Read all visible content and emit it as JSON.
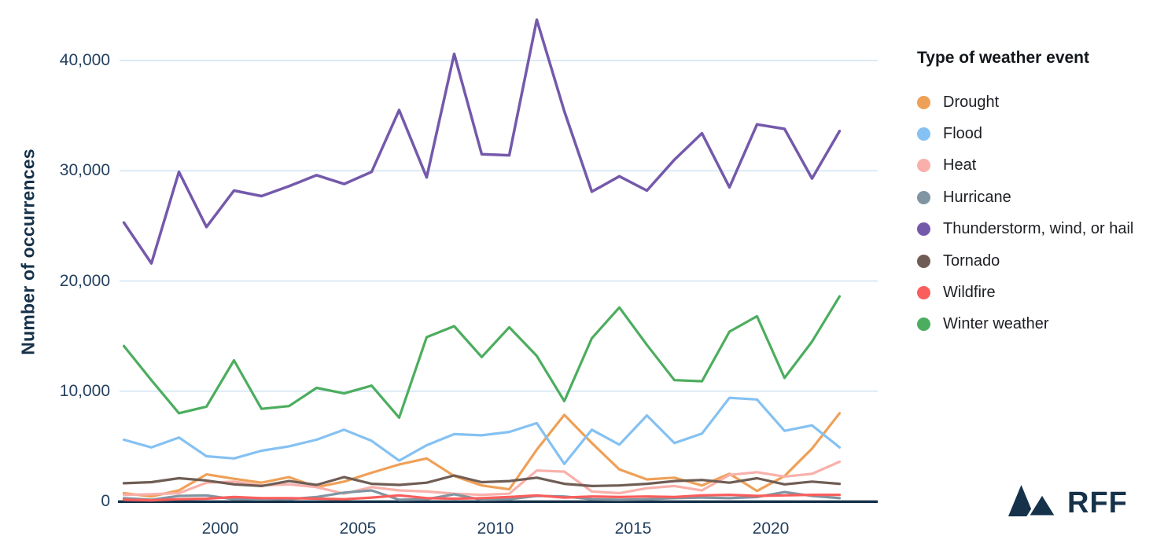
{
  "page": {
    "background": "#FFFFFF"
  },
  "chart_data": {
    "type": "line",
    "title": "",
    "ylabel": "Number of occurrences",
    "xlabel": "",
    "ylim": [
      0,
      44000
    ],
    "grid": true,
    "grid_color": "#DBEAF7",
    "axis_color": "#16324A",
    "tick_label_color": "#24405F",
    "legend_position": "right",
    "x_years": [
      1996,
      1997,
      1998,
      1999,
      2000,
      2001,
      2002,
      2003,
      2004,
      2005,
      2006,
      2007,
      2008,
      2009,
      2010,
      2011,
      2012,
      2013,
      2014,
      2015,
      2016,
      2017,
      2018,
      2019,
      2020,
      2021,
      2022
    ],
    "yticks": [
      {
        "value": 0,
        "label": "0"
      },
      {
        "value": 10000,
        "label": "10,000"
      },
      {
        "value": 20000,
        "label": "20,000"
      },
      {
        "value": 30000,
        "label": "30,000"
      },
      {
        "value": 40000,
        "label": "40,000"
      }
    ],
    "xticks": [
      {
        "value": 2000,
        "label": "2000"
      },
      {
        "value": 2005,
        "label": "2005"
      },
      {
        "value": 2010,
        "label": "2010"
      },
      {
        "value": 2015,
        "label": "2015"
      },
      {
        "value": 2020,
        "label": "2020"
      }
    ],
    "series": [
      {
        "name": "Drought",
        "color": "#EFA057",
        "values": [
          750,
          450,
          1000,
          2450,
          2050,
          1700,
          2200,
          1300,
          1800,
          2600,
          3350,
          3900,
          2300,
          1450,
          1100,
          4700,
          7850,
          5300,
          2900,
          2000,
          2150,
          1450,
          2500,
          950,
          2300,
          4800,
          8000
        ]
      },
      {
        "name": "Flood",
        "color": "#85C1F2",
        "values": [
          5600,
          4900,
          5800,
          4100,
          3900,
          4600,
          5000,
          5600,
          6500,
          5500,
          3700,
          5100,
          6100,
          6000,
          6300,
          7100,
          3400,
          6500,
          5150,
          7800,
          5300,
          6150,
          9400,
          9250,
          6400,
          6900,
          4900
        ]
      },
      {
        "name": "Heat",
        "color": "#F9B0AA",
        "values": [
          600,
          650,
          750,
          1700,
          1800,
          1450,
          1550,
          1300,
          700,
          1300,
          1000,
          900,
          700,
          600,
          700,
          2800,
          2700,
          900,
          750,
          1200,
          1400,
          1000,
          2400,
          2650,
          2250,
          2500,
          3600
        ]
      },
      {
        "name": "Hurricane",
        "color": "#8095A2",
        "values": [
          300,
          150,
          500,
          550,
          200,
          250,
          200,
          400,
          800,
          1000,
          150,
          200,
          650,
          150,
          200,
          500,
          450,
          200,
          150,
          200,
          300,
          350,
          300,
          400,
          850,
          500,
          300
        ]
      },
      {
        "name": "Thunderstorm, wind, or hail",
        "color": "#7459AB",
        "values": [
          25300,
          21600,
          29900,
          24900,
          28200,
          27700,
          28600,
          29600,
          28800,
          29900,
          35500,
          29400,
          40600,
          31500,
          31400,
          43700,
          35400,
          28100,
          29500,
          28200,
          31000,
          33400,
          28500,
          34200,
          33800,
          29300,
          33600
        ]
      },
      {
        "name": "Tornado",
        "color": "#6F5D55",
        "values": [
          1650,
          1750,
          2100,
          1900,
          1550,
          1400,
          1850,
          1500,
          2200,
          1600,
          1500,
          1700,
          2350,
          1750,
          1850,
          2150,
          1600,
          1400,
          1450,
          1600,
          1850,
          1950,
          1700,
          2100,
          1550,
          1800,
          1600
        ]
      },
      {
        "name": "Wildfire",
        "color": "#F95E5C",
        "values": [
          150,
          100,
          200,
          250,
          400,
          300,
          300,
          250,
          200,
          350,
          550,
          300,
          250,
          300,
          400,
          550,
          350,
          450,
          400,
          450,
          400,
          550,
          600,
          500,
          550,
          600,
          600
        ]
      },
      {
        "name": "Winter weather",
        "color": "#4CAD5E",
        "values": [
          14100,
          11000,
          8000,
          8600,
          12800,
          8400,
          8650,
          10300,
          9800,
          10500,
          7600,
          14900,
          15900,
          13100,
          15800,
          13200,
          9100,
          14800,
          17600,
          14200,
          11000,
          10900,
          15400,
          16800,
          11200,
          14500,
          18600
        ]
      }
    ]
  },
  "legend": {
    "title": "Type of weather event"
  },
  "branding": {
    "logo_text": "RFF",
    "logo_color": "#16324A"
  }
}
